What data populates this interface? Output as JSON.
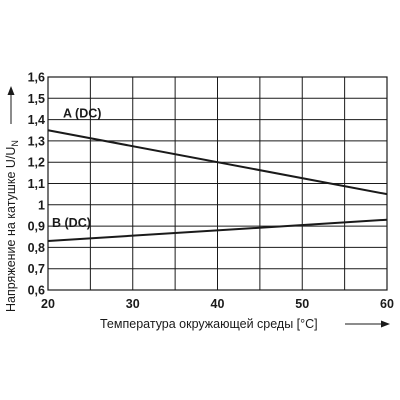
{
  "chart_data": {
    "type": "line",
    "xlabel": "Температура окружающей среды [°C]",
    "ylabel_main": "Напряжение на катушке U/U",
    "ylabel_sub": "N",
    "xlim": [
      20,
      60
    ],
    "ylim": [
      0.6,
      1.6
    ],
    "x_ticks": [
      "20",
      "30",
      "40",
      "50",
      "60"
    ],
    "y_ticks": [
      "0,6",
      "0,7",
      "0,8",
      "0,9",
      "1",
      "1,1",
      "1,2",
      "1,3",
      "1,4",
      "1,5",
      "1,6"
    ],
    "grid": true,
    "series": [
      {
        "name": "A (DC)",
        "x": [
          20,
          60
        ],
        "y": [
          1.35,
          1.05
        ]
      },
      {
        "name": "B (DC)",
        "x": [
          20,
          60
        ],
        "y": [
          0.83,
          0.93
        ]
      }
    ],
    "colors": {
      "line": "#1a1a1a",
      "grid": "#1a1a1a",
      "background": "#ffffff"
    }
  }
}
